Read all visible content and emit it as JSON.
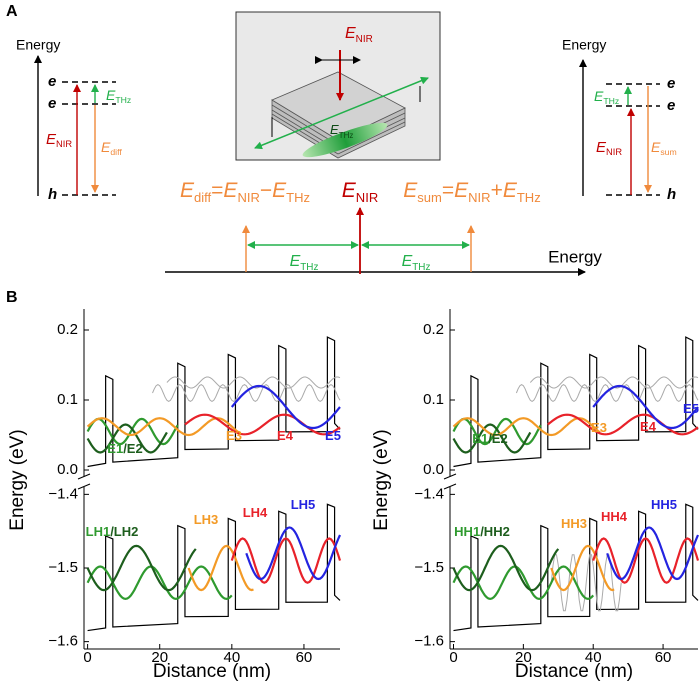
{
  "panel_a": {
    "label": "A",
    "left": {
      "axis_label": "Energy",
      "levels": [
        "e",
        "e",
        "h"
      ],
      "thz": {
        "main": "E",
        "sub": "THz"
      },
      "nir": {
        "main": "E",
        "sub": "NIR"
      },
      "diff": {
        "main": "E",
        "sub": "diff"
      }
    },
    "inset": {
      "nir": {
        "main": "E",
        "sub": "NIR"
      },
      "thz": {
        "main": "E",
        "sub": "THz"
      }
    },
    "spectrum": {
      "axis_label": "Energy",
      "diff_eq": [
        {
          "main": "E",
          "sub": "diff"
        },
        "=",
        {
          "main": "E",
          "sub": "NIR"
        },
        "−",
        {
          "main": "E",
          "sub": "THz"
        }
      ],
      "nir": {
        "main": "E",
        "sub": "NIR"
      },
      "sum_eq": [
        {
          "main": "E",
          "sub": "sum"
        },
        "=",
        {
          "main": "E",
          "sub": "NIR"
        },
        "+",
        {
          "main": "E",
          "sub": "THz"
        }
      ],
      "gap_left": {
        "main": "E",
        "sub": "THz"
      },
      "gap_right": {
        "main": "E",
        "sub": "THz"
      }
    },
    "right": {
      "axis_label": "Energy",
      "levels": [
        "e",
        "e",
        "h"
      ],
      "thz": {
        "main": "E",
        "sub": "THz"
      },
      "nir": {
        "main": "E",
        "sub": "NIR"
      },
      "sum": {
        "main": "E",
        "sub": "sum"
      }
    }
  },
  "panel_b": {
    "label": "B",
    "plots": [
      {
        "ylabel": "Energy (eV)",
        "xlabel": "Distance (nm)",
        "xlim": [
          -1,
          70
        ],
        "xticks": [
          0,
          20,
          40,
          60
        ],
        "upper": {
          "ylim": [
            -0.01,
            0.23
          ],
          "yticks": [
            {
              "value": 0,
              "label": "0.0"
            },
            {
              "value": 0.1,
              "label": "0.1"
            },
            {
              "value": 0.2,
              "label": "0.2"
            }
          ]
        },
        "lower": {
          "ylim": [
            -1.61,
            -1.39
          ],
          "yticks": [
            {
              "value": -1.4,
              "label": "−1.4"
            },
            {
              "value": -1.5,
              "label": "−1.5"
            },
            {
              "value": -1.6,
              "label": "−1.6"
            }
          ]
        },
        "labels": [
          {
            "parts": [
              {
                "text": "E1",
                "color": "#2f9a2f"
              },
              {
                "text": "/E2",
                "color": "#1d5e1d"
              }
            ]
          },
          {
            "parts": [
              {
                "text": "E3",
                "color": "#f39a26"
              }
            ]
          },
          {
            "parts": [
              {
                "text": "E4",
                "color": "#e8222a"
              }
            ]
          },
          {
            "parts": [
              {
                "text": "E5",
                "color": "#2424e0"
              }
            ]
          },
          {
            "parts": [
              {
                "text": "LH1",
                "color": "#2f9a2f"
              },
              {
                "text": "/LH2",
                "color": "#1d5e1d"
              }
            ]
          },
          {
            "parts": [
              {
                "text": "LH3",
                "color": "#f39a26"
              }
            ]
          },
          {
            "parts": [
              {
                "text": "LH4",
                "color": "#e8222a"
              }
            ]
          },
          {
            "parts": [
              {
                "text": "LH5",
                "color": "#2424e0"
              }
            ]
          }
        ]
      },
      {
        "ylabel": "Energy (eV)",
        "xlabel": "Distance (nm)",
        "xlim": [
          -1,
          70
        ],
        "xticks": [
          0,
          20,
          40,
          60
        ],
        "upper": {
          "ylim": [
            -0.01,
            0.23
          ],
          "yticks": [
            {
              "value": 0,
              "label": "0.0"
            },
            {
              "value": 0.1,
              "label": "0.1"
            },
            {
              "value": 0.2,
              "label": "0.2"
            }
          ]
        },
        "lower": {
          "ylim": [
            -1.61,
            -1.39
          ],
          "yticks": [
            {
              "value": -1.4,
              "label": "−1.4"
            },
            {
              "value": -1.5,
              "label": "−1.5"
            },
            {
              "value": -1.6,
              "label": "−1.6"
            }
          ]
        },
        "labels": [
          {
            "parts": [
              {
                "text": "E1",
                "color": "#2f9a2f"
              },
              {
                "text": "/E2",
                "color": "#1d5e1d"
              }
            ]
          },
          {
            "parts": [
              {
                "text": "E3",
                "color": "#f39a26"
              }
            ]
          },
          {
            "parts": [
              {
                "text": "E4",
                "color": "#e8222a"
              }
            ]
          },
          {
            "parts": [
              {
                "text": "E5",
                "color": "#2424e0"
              }
            ]
          },
          {
            "parts": [
              {
                "text": "HH1",
                "color": "#2f9a2f"
              },
              {
                "text": "/HH2",
                "color": "#1d5e1d"
              }
            ]
          },
          {
            "parts": [
              {
                "text": "HH3",
                "color": "#f39a26"
              }
            ]
          },
          {
            "parts": [
              {
                "text": "HH4",
                "color": "#e8222a"
              }
            ]
          },
          {
            "parts": [
              {
                "text": "HH5",
                "color": "#2424e0"
              }
            ]
          }
        ]
      }
    ]
  }
}
